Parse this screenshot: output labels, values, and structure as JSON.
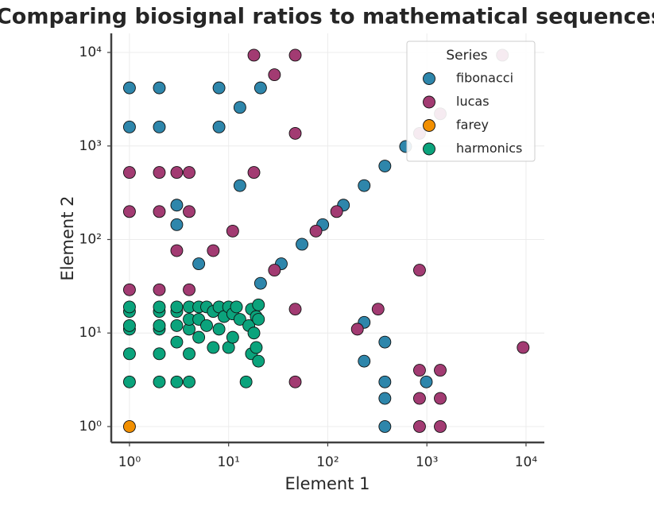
{
  "chart_data": {
    "type": "scatter",
    "title": "Comparing biosignal ratios to mathematical sequences",
    "x_label": "Element 1",
    "y_label": "Element 2",
    "log_x": true,
    "log_y": true,
    "grid": true,
    "xlim": [
      0.655,
      15300
    ],
    "ylim": [
      0.676,
      16000
    ],
    "xticks": [
      {
        "value": 1,
        "label": "10⁰"
      },
      {
        "value": 10,
        "label": "10¹"
      },
      {
        "value": 100,
        "label": "10²"
      },
      {
        "value": 1000,
        "label": "10³"
      },
      {
        "value": 10000,
        "label": "10⁴"
      }
    ],
    "yticks": [
      {
        "value": 1,
        "label": "10⁰"
      },
      {
        "value": 10,
        "label": "10¹"
      },
      {
        "value": 100,
        "label": "10²"
      },
      {
        "value": 1000,
        "label": "10³"
      },
      {
        "value": 10000,
        "label": "10⁴"
      }
    ],
    "legend_title": "Series",
    "legend_position": "upper right",
    "series": [
      {
        "name": "fibonacci",
        "color": "#2e86ab",
        "x": [
          1,
          2,
          8,
          21,
          13,
          1,
          2,
          8,
          13,
          3,
          3,
          5,
          21,
          34,
          55,
          89,
          144,
          233,
          377,
          610,
          233,
          233,
          377,
          377,
          377,
          377,
          987
        ],
        "values": [
          4181,
          4181,
          4181,
          4181,
          2584,
          1597,
          1597,
          1597,
          377,
          233,
          144,
          55,
          34,
          55,
          89,
          144,
          233,
          377,
          610,
          987,
          13,
          5,
          8,
          3,
          2,
          1,
          3
        ]
      },
      {
        "name": "lucas",
        "color": "#a23b72",
        "x": [
          18,
          47,
          29,
          47,
          1,
          2,
          3,
          4,
          18,
          1,
          2,
          4,
          11,
          7,
          3,
          29,
          76,
          123,
          1,
          2,
          4,
          47,
          322,
          199,
          843,
          47,
          843,
          1364,
          843,
          1364,
          843,
          1364,
          9349,
          5778,
          843,
          1364
        ],
        "values": [
          9349,
          9349,
          5778,
          1364,
          521,
          521,
          521,
          521,
          521,
          199,
          199,
          199,
          123,
          76,
          76,
          47,
          123,
          199,
          29,
          29,
          29,
          18,
          18,
          11,
          47,
          3,
          4,
          4,
          2,
          2,
          1,
          1,
          7,
          9349,
          1364,
          2207
        ]
      },
      {
        "name": "farey",
        "color": "#f18f01",
        "x": [
          1
        ],
        "values": [
          1
        ]
      },
      {
        "name": "harmonics",
        "color": "#0ba37c",
        "x": [
          1,
          1,
          1,
          1,
          1,
          1,
          2,
          2,
          2,
          2,
          2,
          2,
          3,
          3,
          3,
          3,
          3,
          4,
          4,
          4,
          4,
          4,
          5,
          5,
          5,
          6,
          6,
          7,
          7,
          8,
          8,
          9,
          10,
          10,
          11,
          11,
          12,
          13,
          15,
          16,
          17,
          17,
          18,
          19,
          19,
          20,
          20,
          20
        ],
        "values": [
          3,
          6,
          11,
          12,
          17,
          19,
          3,
          6,
          11,
          12,
          17,
          19,
          3,
          8,
          12,
          17,
          19,
          3,
          6,
          11,
          14,
          19,
          9,
          14,
          19,
          12,
          19,
          7,
          17,
          11,
          19,
          15,
          7,
          19,
          9,
          16,
          19,
          14,
          3,
          12,
          6,
          18,
          10,
          7,
          15,
          5,
          14,
          20
        ]
      }
    ]
  }
}
